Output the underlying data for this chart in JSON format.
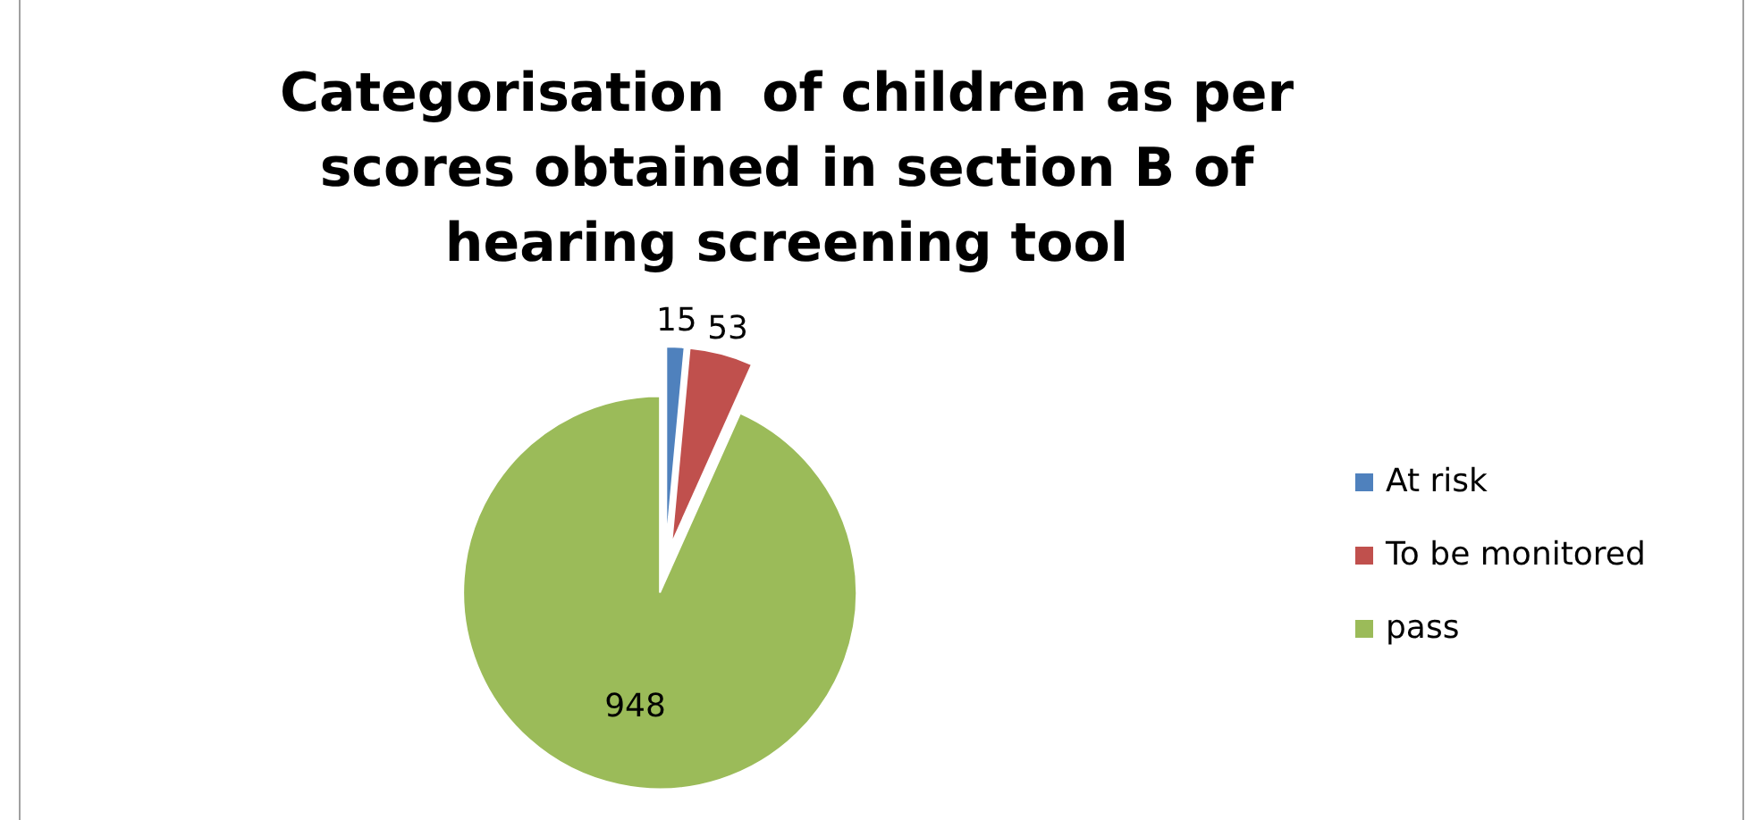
{
  "chart_data": {
    "type": "pie",
    "title": "Categorisation  of children as per scores obtained in section B of hearing screening tool",
    "categories": [
      "At risk",
      "To be monitored",
      "pass"
    ],
    "values": [
      15,
      53,
      948
    ],
    "colors": [
      "#4f81bd",
      "#c0504d",
      "#9bbb59"
    ],
    "data_labels": true,
    "legend": "right"
  }
}
